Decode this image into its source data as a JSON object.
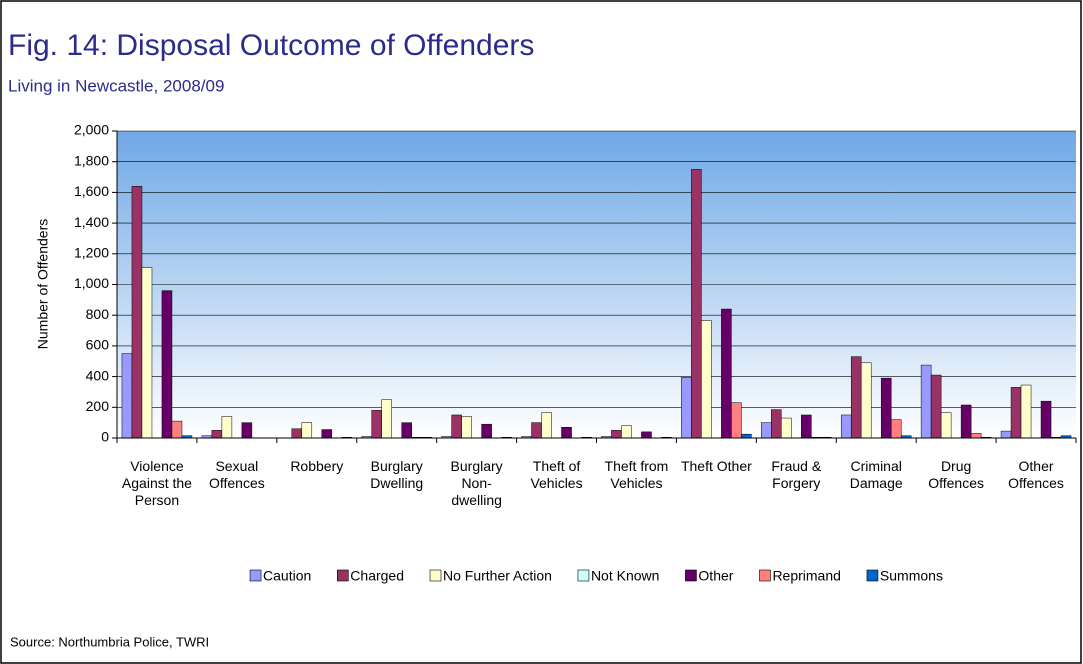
{
  "chart_data": {
    "type": "bar",
    "title": "Fig. 14: Disposal Outcome of Offenders",
    "subtitle": "Living in Newcastle, 2008/09",
    "source": "Source: Northumbria Police, TWRI",
    "y_label": "Number of Offenders",
    "categories": [
      "Violence Against the Person",
      "Sexual Offences",
      "Robbery",
      "Burglary Dwelling",
      "Burglary Non-dwelling",
      "Theft of Vehicles",
      "Theft from Vehicles",
      "Theft Other",
      "Fraud & Forgery",
      "Criminal Damage",
      "Drug Offences",
      "Other Offences"
    ],
    "series": [
      {
        "name": "Caution",
        "color": "#9999ff",
        "values": [
          550,
          15,
          0,
          10,
          10,
          10,
          10,
          395,
          100,
          150,
          475,
          45
        ]
      },
      {
        "name": "Charged",
        "color": "#993366",
        "values": [
          1640,
          50,
          60,
          180,
          150,
          100,
          50,
          1750,
          185,
          530,
          410,
          330
        ]
      },
      {
        "name": "No Further Action",
        "color": "#ffffcc",
        "values": [
          1110,
          140,
          100,
          250,
          140,
          165,
          80,
          765,
          130,
          490,
          165,
          345
        ]
      },
      {
        "name": "Not Known",
        "color": "#ccffff",
        "values": [
          0,
          0,
          0,
          0,
          0,
          0,
          0,
          0,
          0,
          0,
          0,
          0
        ]
      },
      {
        "name": "Other",
        "color": "#660066",
        "values": [
          960,
          100,
          55,
          100,
          90,
          70,
          40,
          840,
          150,
          390,
          215,
          240
        ]
      },
      {
        "name": "Reprimand",
        "color": "#ff8080",
        "values": [
          110,
          0,
          0,
          5,
          0,
          0,
          0,
          230,
          5,
          120,
          30,
          5
        ]
      },
      {
        "name": "Summons",
        "color": "#0066cc",
        "values": [
          15,
          0,
          5,
          5,
          5,
          5,
          5,
          25,
          5,
          15,
          5,
          15
        ]
      }
    ],
    "ylim": [
      0,
      2000
    ],
    "yticks": [
      0,
      200,
      400,
      600,
      800,
      {
        "value": 1000,
        "label": "1,000"
      },
      {
        "value": 1200,
        "label": "1,200"
      },
      {
        "value": 1400,
        "label": "1,400"
      },
      {
        "value": 1600,
        "label": "1,600"
      },
      {
        "value": 1800,
        "label": "1,800"
      },
      {
        "value": 2000,
        "label": "2,000"
      }
    ],
    "grid": true
  }
}
